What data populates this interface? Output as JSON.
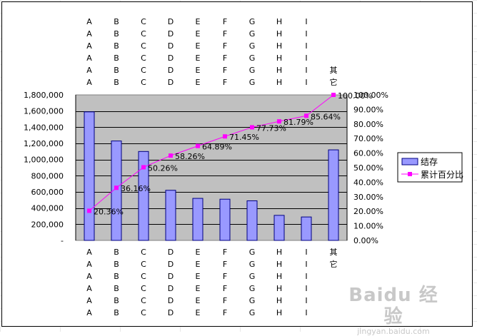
{
  "chart_data": {
    "type": "bar+line",
    "categories": [
      [
        "A",
        "A",
        "A",
        "A",
        "A",
        "A"
      ],
      [
        "B",
        "B",
        "B",
        "B",
        "B",
        "B"
      ],
      [
        "C",
        "C",
        "C",
        "C",
        "C",
        "C"
      ],
      [
        "D",
        "D",
        "D",
        "D",
        "D",
        "D"
      ],
      [
        "E",
        "E",
        "E",
        "E",
        "E",
        "E"
      ],
      [
        "F",
        "F",
        "F",
        "F",
        "F",
        "F"
      ],
      [
        "G",
        "G",
        "G",
        "G",
        "G",
        "G"
      ],
      [
        "H",
        "H",
        "H",
        "H",
        "H",
        "H"
      ],
      [
        "I",
        "I",
        "I",
        "I",
        "I",
        "I"
      ],
      [
        "其",
        "它"
      ]
    ],
    "series": [
      {
        "name": "结存",
        "type": "bar",
        "axis": "left",
        "values": [
          1590000,
          1230000,
          1100000,
          620000,
          520000,
          510000,
          490000,
          310000,
          290000,
          1120000
        ]
      },
      {
        "name": "累计百分比",
        "type": "line",
        "axis": "right",
        "values": [
          20.36,
          36.16,
          50.26,
          58.26,
          64.89,
          71.45,
          77.73,
          81.79,
          85.64,
          100
        ],
        "labels": [
          "20.36%",
          "36.16%",
          "50.26%",
          "58.26%",
          "64.89%",
          "71.45%",
          "77.73%",
          "81.79%",
          "85.64%",
          "100.00%"
        ]
      }
    ],
    "y_left": {
      "ylim": [
        0,
        1800000
      ],
      "ticks": [
        "-",
        "200,000",
        "400,000",
        "600,000",
        "800,000",
        "1,000,000",
        "1,200,000",
        "1,400,000",
        "1,600,000",
        "1,800,000"
      ]
    },
    "y_right": {
      "ylim": [
        0,
        100
      ],
      "ticks": [
        "0.00%",
        "10.00%",
        "20.00%",
        "30.00%",
        "40.00%",
        "50.00%",
        "60.00%",
        "70.00%",
        "80.00%",
        "90.00%",
        "100.00%"
      ]
    },
    "grid": true,
    "legend_position": "right",
    "colors": {
      "bar": "#9999ff",
      "bar_stroke": "#000080",
      "line": "#ff00ff",
      "plot_bg": "#c0c0c0"
    }
  },
  "watermark": {
    "main": "Baidu 经验",
    "sub": "jingyan.baidu.com"
  }
}
